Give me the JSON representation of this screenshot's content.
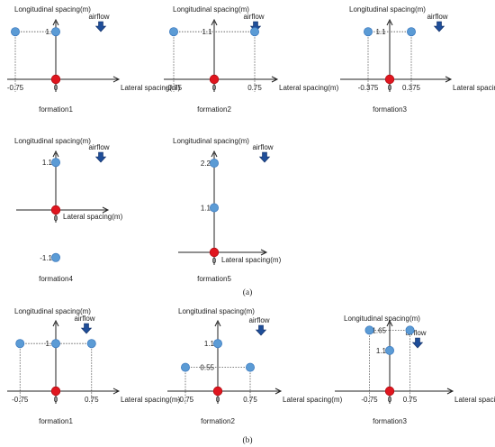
{
  "colors": {
    "follower": "#5b9bd5",
    "leader": "#e0161f",
    "arrow": "#1f4e99",
    "axis": "#222222"
  },
  "texts": {
    "ylabel": "Longitudinal spacing(m)",
    "xlabel": "Lateral spacing(m)",
    "airflow": "airflow",
    "caption_a": "(a)",
    "caption_b": "(b)"
  },
  "formations": [
    {
      "caption": "formation1",
      "leader": [
        0,
        0
      ],
      "followers": [
        [
          -0.75,
          1.1
        ],
        [
          0,
          1.1
        ]
      ],
      "inline_label": "1.1",
      "x_ticks": [
        "-0.75",
        "0"
      ],
      "y_ticks": []
    },
    {
      "caption": "formation2",
      "leader": [
        0,
        0
      ],
      "followers": [
        [
          -0.75,
          1.1
        ],
        [
          0.75,
          1.1
        ]
      ],
      "inline_label": "1.1",
      "x_ticks": [
        "-0.75",
        "0",
        "0.75"
      ],
      "y_ticks": []
    },
    {
      "caption": "formation3",
      "leader": [
        0,
        0
      ],
      "followers": [
        [
          -0.375,
          1.1
        ],
        [
          0.375,
          1.1
        ]
      ],
      "inline_label": "1.1",
      "x_ticks": [
        "-0.375",
        "0",
        "0.375"
      ],
      "y_ticks": []
    },
    {
      "caption": "formation4",
      "leader": [
        0,
        0
      ],
      "followers": [
        [
          0,
          1.1
        ],
        [
          0,
          -1.1
        ]
      ],
      "inline_label": "",
      "x_ticks": [
        "0"
      ],
      "y_ticks": [
        "1.1",
        "-1.1"
      ]
    },
    {
      "caption": "formation5",
      "leader": [
        0,
        0
      ],
      "followers": [
        [
          0,
          1.1
        ],
        [
          0,
          2.2
        ]
      ],
      "inline_label": "",
      "x_ticks": [
        "0"
      ],
      "y_ticks": [
        "1.1",
        "2.2"
      ]
    },
    {
      "caption": "formation1",
      "leader": [
        0,
        0
      ],
      "followers": [
        [
          -0.75,
          1.1
        ],
        [
          0,
          1.1
        ],
        [
          0.75,
          1.1
        ]
      ],
      "inline_label": "1.1",
      "x_ticks": [
        "-0.75",
        "0",
        "0.75"
      ],
      "y_ticks": []
    },
    {
      "caption": "formation2",
      "leader": [
        0,
        0
      ],
      "followers": [
        [
          0,
          1.1
        ],
        [
          -0.75,
          0.55
        ],
        [
          0.75,
          0.55
        ]
      ],
      "inline_label": "0.55",
      "x_ticks": [
        "-0.75",
        "0",
        "0.75"
      ],
      "y_ticks": [
        "1.1"
      ]
    },
    {
      "caption": "formation3",
      "leader": [
        0,
        0
      ],
      "followers": [
        [
          0,
          1.1
        ],
        [
          -0.75,
          1.65
        ],
        [
          0.75,
          1.65
        ]
      ],
      "inline_label": "1.65",
      "x_ticks": [
        "-0.75",
        "0",
        "0.75"
      ],
      "y_ticks": [
        "1.1"
      ]
    }
  ]
}
